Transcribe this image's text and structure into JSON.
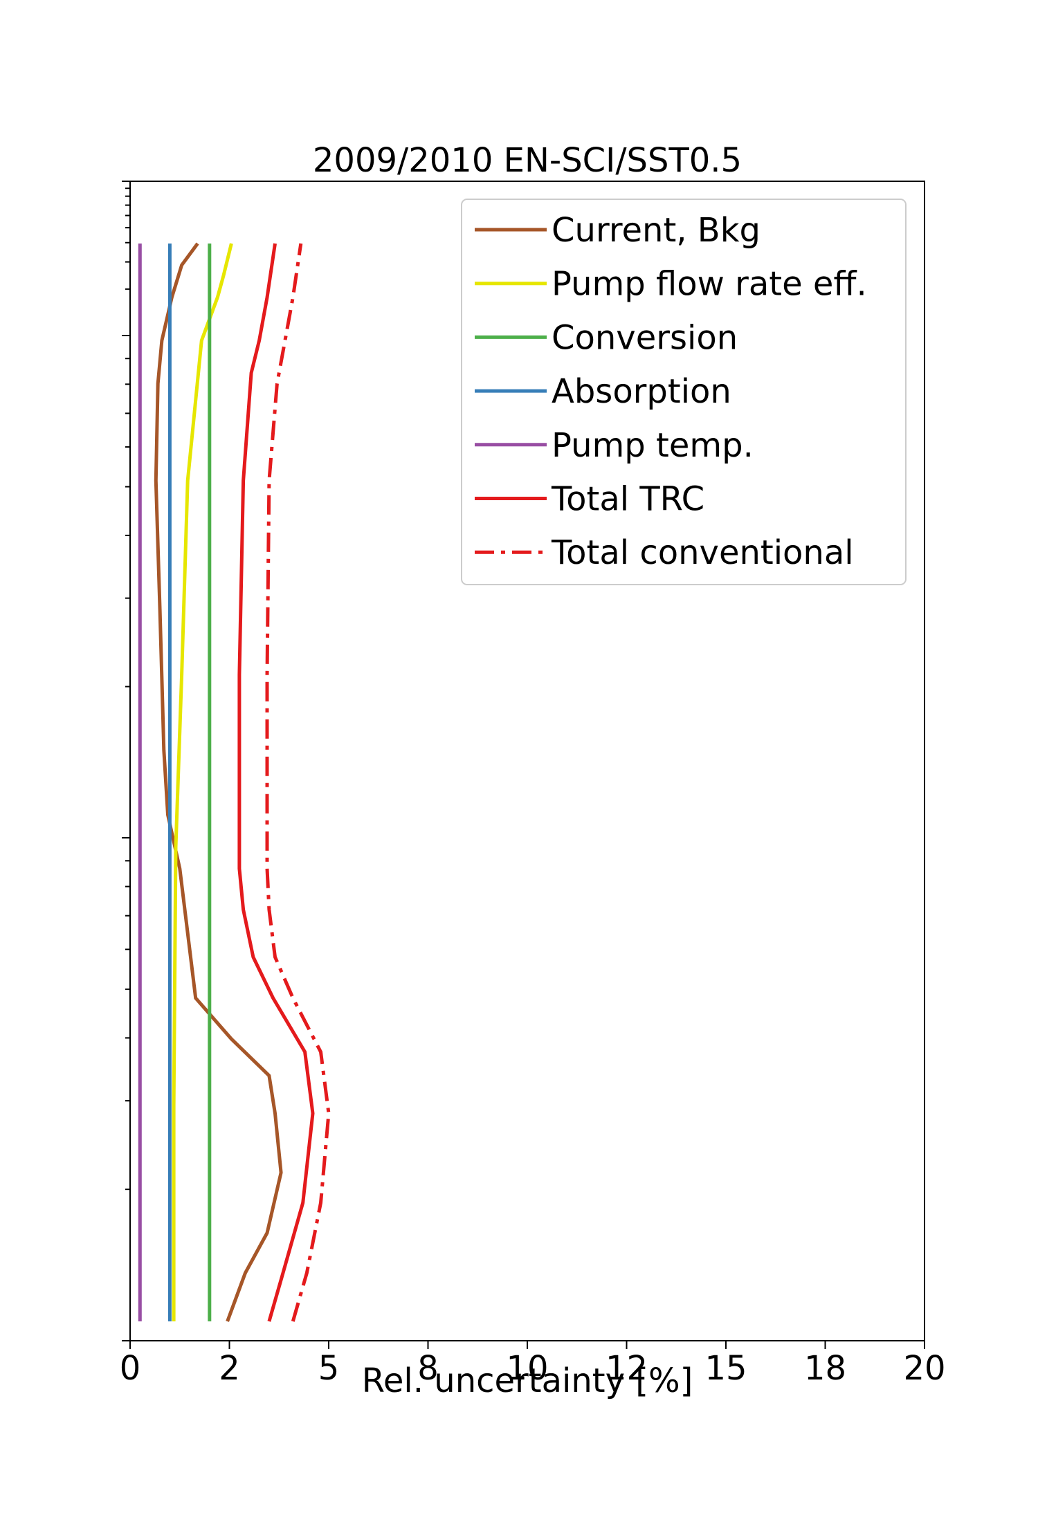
{
  "chart_data": {
    "type": "line",
    "title": "2009/2010 EN-SCI/SST0.5",
    "xlabel": "Rel. uncertainty [%]",
    "ylabel": "",
    "xlim": [
      0,
      20
    ],
    "xticks": [
      0,
      2.5,
      5,
      7.5,
      10,
      12.5,
      15,
      17.5,
      20
    ],
    "xtick_labels": [
      "0",
      "2",
      "5",
      "8",
      "10",
      "12",
      "15",
      "18",
      "20"
    ],
    "ylim": [
      0,
      1
    ],
    "y_scale": "log",
    "grid": false,
    "legend_position": "upper-right",
    "series": [
      {
        "name": "Current, Bkg",
        "color": "#a65628",
        "style": "solid",
        "x": [
          2.45,
          2.9,
          3.45,
          3.8,
          3.65,
          3.5,
          2.55,
          1.65,
          1.25,
          0.95,
          0.85,
          0.75,
          0.65,
          0.7,
          0.8,
          1.05,
          1.3,
          1.7
        ],
        "y": [
          0.0,
          0.045,
          0.082,
          0.138,
          0.193,
          0.228,
          0.262,
          0.3,
          0.42,
          0.47,
          0.53,
          0.66,
          0.78,
          0.87,
          0.91,
          0.95,
          0.98,
          1.0
        ]
      },
      {
        "name": "Pump flow rate eff.",
        "color": "#e6e600",
        "style": "solid",
        "x": [
          1.1,
          1.1,
          1.15,
          1.3,
          1.45,
          1.8,
          2.2,
          2.35,
          2.55
        ],
        "y": [
          0.0,
          0.2,
          0.44,
          0.6,
          0.78,
          0.91,
          0.95,
          0.97,
          1.0
        ]
      },
      {
        "name": "Conversion",
        "color": "#4daf4a",
        "style": "solid",
        "x": [
          2.0,
          2.0
        ],
        "y": [
          0.0,
          1.0
        ]
      },
      {
        "name": "Absorption",
        "color": "#377eb8",
        "style": "solid",
        "x": [
          1.0,
          1.0
        ],
        "y": [
          0.0,
          1.0
        ]
      },
      {
        "name": "Pump temp.",
        "color": "#984ea3",
        "style": "solid",
        "x": [
          0.25,
          0.25
        ],
        "y": [
          0.0,
          1.0
        ]
      },
      {
        "name": "Total TRC",
        "color": "#e41a1c",
        "style": "solid",
        "x": [
          3.5,
          3.85,
          4.35,
          4.6,
          4.4,
          3.6,
          3.1,
          2.85,
          2.75,
          2.75,
          2.85,
          3.05,
          3.25,
          3.45,
          3.65
        ],
        "y": [
          0.0,
          0.045,
          0.11,
          0.193,
          0.25,
          0.3,
          0.338,
          0.382,
          0.42,
          0.6,
          0.78,
          0.88,
          0.91,
          0.95,
          1.0
        ]
      },
      {
        "name": "Total conventional",
        "color": "#e41a1c",
        "style": "dashdot",
        "x": [
          4.1,
          4.45,
          4.8,
          5.0,
          4.8,
          4.1,
          3.65,
          3.5,
          3.45,
          3.45,
          3.5,
          3.7,
          3.9,
          4.1,
          4.3
        ],
        "y": [
          0.0,
          0.045,
          0.11,
          0.193,
          0.25,
          0.3,
          0.338,
          0.382,
          0.42,
          0.6,
          0.78,
          0.87,
          0.91,
          0.95,
          1.0
        ]
      }
    ]
  }
}
